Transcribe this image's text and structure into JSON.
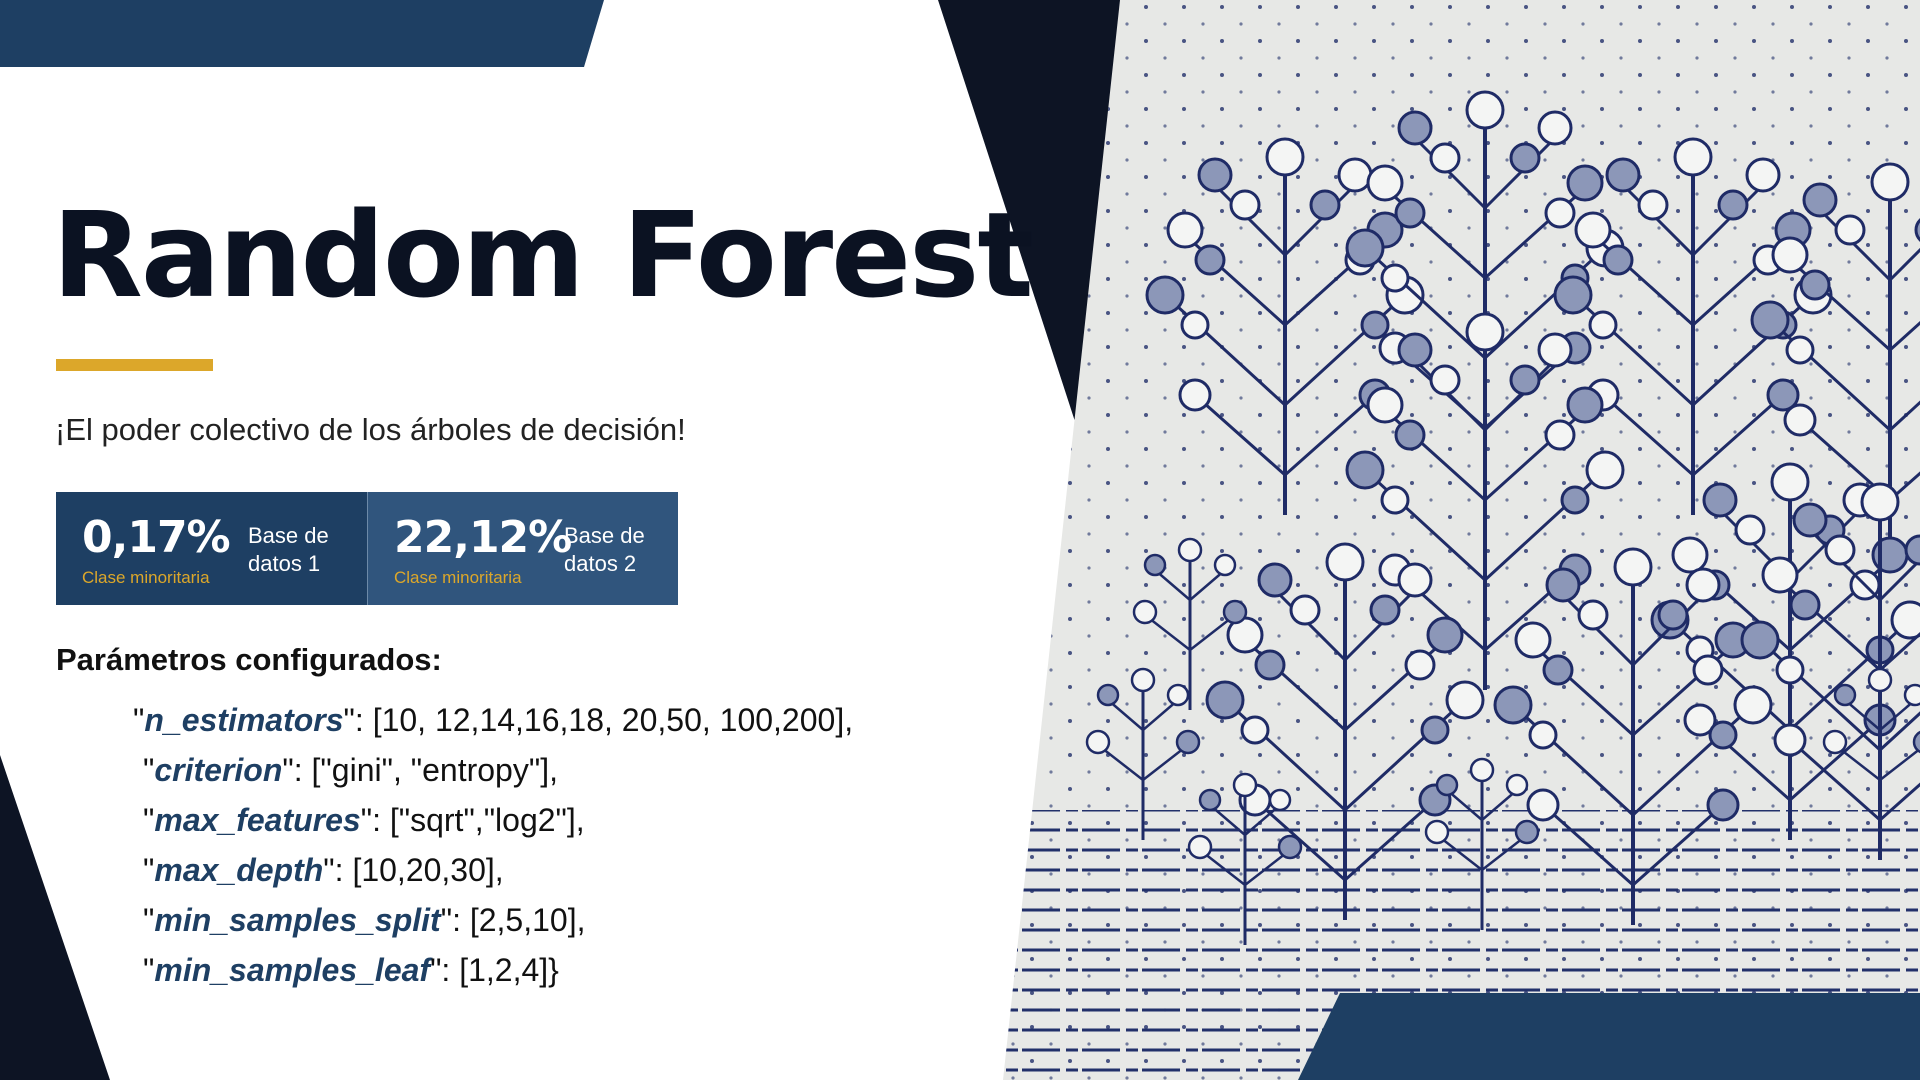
{
  "title": "Random Forest",
  "subtitle": "¡El poder colectivo de los árboles de decisión!",
  "stats": [
    {
      "value": "0,17%",
      "caption": "Clase minoritaria",
      "label_line1": "Base de",
      "label_line2": "datos 1"
    },
    {
      "value": "22,12%",
      "caption": "Clase minoritaria",
      "label_line1": "Base de",
      "label_line2": "datos 2"
    }
  ],
  "params_heading": "Parámetros configurados:",
  "params": [
    {
      "prefix": "\"",
      "key": "n_estimators",
      "suffix": "\": [10, 12,14,16,18, 20,50, 100,200],"
    },
    {
      "prefix": "\"",
      "key": "criterion",
      "suffix": "\": [\"gini\", \"entropy\"],"
    },
    {
      "prefix": "\"",
      "key": "max_features",
      "suffix": "\": [\"sqrt\",\"log2\"],"
    },
    {
      "prefix": "\"",
      "key": "max_depth",
      "suffix": "\": [10,20,30],"
    },
    {
      "prefix": "\"",
      "key": "min_samples_split",
      "suffix": "\": [2,5,10],"
    },
    {
      "prefix": "\"",
      "key": "min_samples_leaf",
      "suffix": "\": [1,2,4]}"
    }
  ],
  "colors": {
    "navy": "#1e3f63",
    "dark": "#0b1222",
    "accent": "#dca72a",
    "illustration_bg": "#e7e8e6",
    "tree_ink": "#1f2b66"
  }
}
